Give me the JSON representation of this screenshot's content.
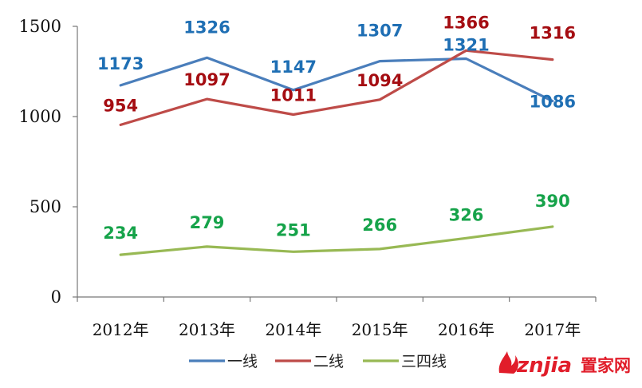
{
  "chart_data": {
    "type": "line",
    "title": "",
    "xlabel": "",
    "ylabel": "",
    "categories": [
      "2012年",
      "2013年",
      "2014年",
      "2015年",
      "2016年",
      "2017年"
    ],
    "ylim": [
      0,
      1500
    ],
    "yticks": [
      "0",
      "500",
      "1000",
      "1500"
    ],
    "legend_position": "bottom",
    "series": [
      {
        "name": "一线",
        "color": "#4a7ebb",
        "label_color": "#1f6fb4",
        "values": [
          1173,
          1326,
          1147,
          1307,
          1321,
          1086
        ]
      },
      {
        "name": "二线",
        "color": "#be4b48",
        "label_color": "#a50d12",
        "values": [
          954,
          1097,
          1011,
          1094,
          1366,
          1316
        ]
      },
      {
        "name": "三四线",
        "color": "#98b954",
        "label_color": "#16a34a",
        "values": [
          234,
          279,
          251,
          266,
          326,
          390
        ]
      }
    ]
  },
  "watermark": {
    "brand": "znjia",
    "suffix": "置家网",
    "brand_color": "#e11d2a",
    "suffix_color": "#e11d2a"
  }
}
